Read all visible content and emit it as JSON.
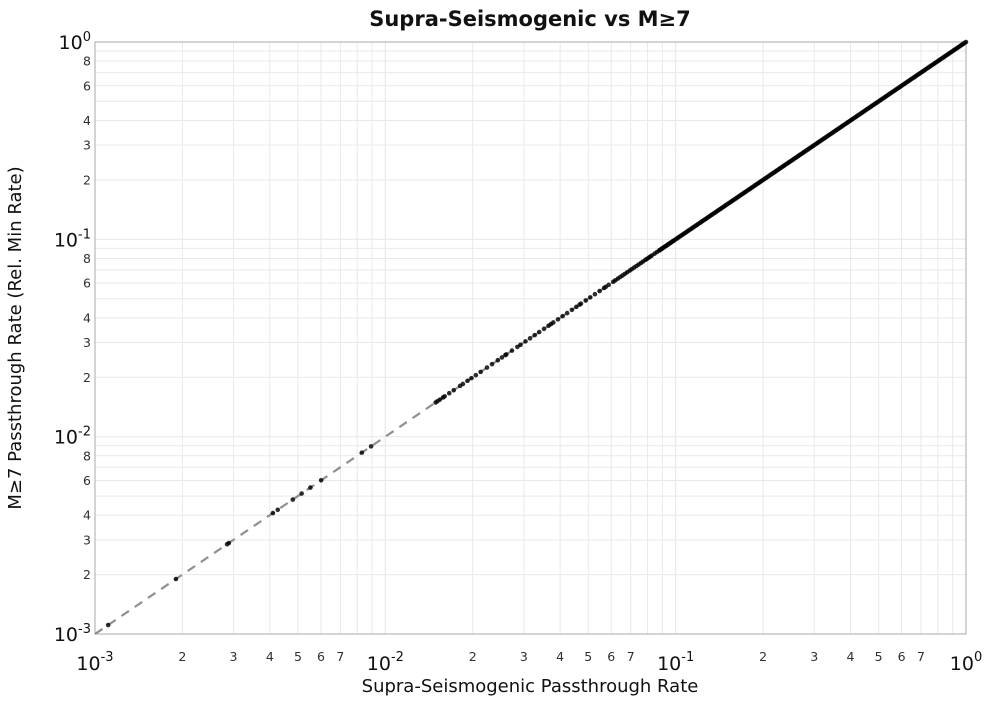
{
  "title": "Supra-Seismogenic vs M≥7",
  "colors": {
    "background": "#ffffff",
    "point": "#000000",
    "identity_line": "#8f8f8f",
    "gridline": "#e9e9e9",
    "plot_border": "#b8b8b8",
    "text": "#111111",
    "minor_tick_text": "#303030"
  },
  "axes": {
    "tick_base": "10",
    "x": {
      "label": "Supra-Seismogenic Passthrough Rate",
      "scale": "log",
      "major_exponents": [
        -3,
        -2,
        -1,
        0
      ],
      "minor_digits": [
        2,
        3,
        4,
        5,
        6,
        7
      ]
    },
    "y": {
      "label": "M≥7 Passthrough Rate (Rel. Min Rate)",
      "scale": "log",
      "major_exponents": [
        0,
        -1,
        -2,
        -3
      ],
      "minor_digits": [
        8,
        6,
        4,
        3,
        2
      ]
    }
  },
  "chart_data": {
    "type": "scatter",
    "title": "Supra-Seismogenic vs M≥7",
    "xlabel": "Supra-Seismogenic Passthrough Rate",
    "ylabel": "M≥7 Passthrough Rate (Rel. Min Rate)",
    "x_scale": "log",
    "y_scale": "log",
    "xlim": [
      0.001,
      1
    ],
    "ylim": [
      0.001,
      1
    ],
    "grid": true,
    "legend": false,
    "identity_line": {
      "style": "dashed",
      "color": "#8f8f8f",
      "relation": "y = x",
      "x_from": 0.001,
      "x_to": 1.0
    },
    "series": [
      {
        "name": "passthrough-rate-points",
        "marker": "circle",
        "color": "#000000",
        "y_equals_x": true,
        "x_values": [
          0.00111,
          0.0019,
          0.00285,
          0.00289,
          0.0041,
          0.00426,
          0.0048,
          0.00515,
          0.00552,
          0.00601,
          0.0083,
          0.00893,
          0.0149,
          0.0151,
          0.0154,
          0.0158,
          0.016,
          0.0166,
          0.0172,
          0.0181,
          0.0185,
          0.0192,
          0.0198,
          0.0205,
          0.0213,
          0.0224,
          0.0233,
          0.0244,
          0.0252,
          0.0259,
          0.0261,
          0.0273,
          0.0285,
          0.0292,
          0.0304,
          0.0315,
          0.0327,
          0.0339,
          0.0352,
          0.0365,
          0.0372,
          0.0379,
          0.0393,
          0.0408,
          0.0423,
          0.0439,
          0.0455,
          0.0467,
          0.0472,
          0.049,
          0.0508,
          0.0527,
          0.0547,
          0.0567,
          0.0575,
          0.0588,
          0.061,
          0.062,
          0.0633,
          0.0645,
          0.0656,
          0.0668,
          0.0681,
          0.0695,
          0.0706,
          0.0719,
          0.0732,
          0.0745,
          0.0759,
          0.0772,
          0.0787,
          0.0795,
          0.0806,
          0.0816,
          0.0827,
          0.0846,
          0.0862,
          0.0878,
          0.0894,
          0.091,
          0.0927,
          0.0944,
          0.0961,
          0.0979
        ],
        "dense_band": {
          "x_from": 0.088,
          "x_to": 1.0,
          "count": 230
        }
      }
    ]
  }
}
